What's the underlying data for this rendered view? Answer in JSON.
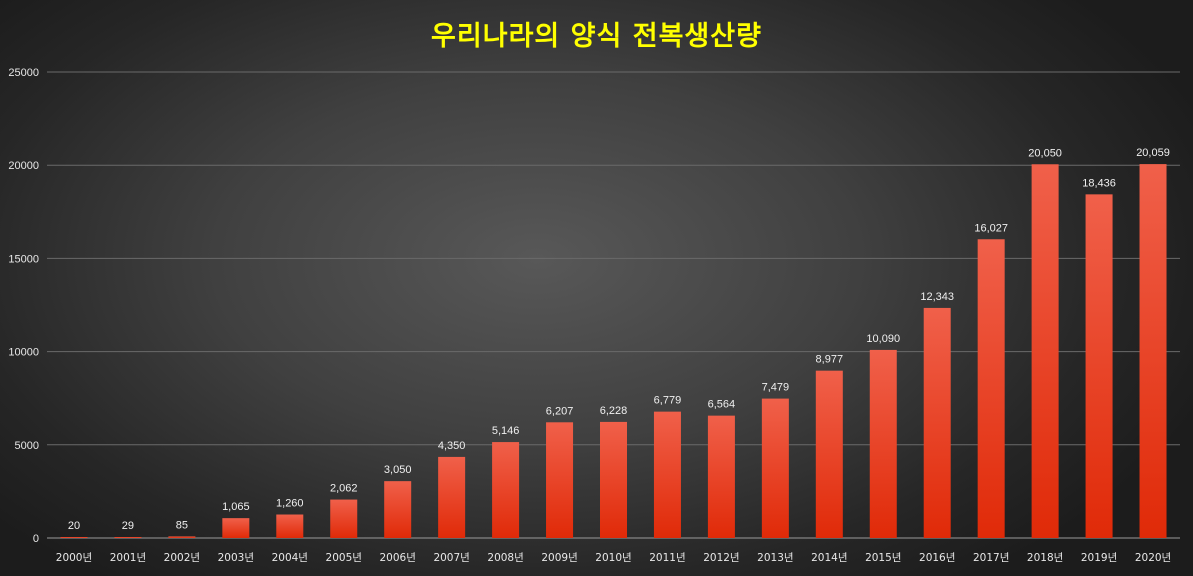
{
  "chart_data": {
    "type": "bar",
    "title": "우리나라의 양식 전복생산량",
    "categories": [
      "2000년",
      "2001년",
      "2002년",
      "2003년",
      "2004년",
      "2005년",
      "2006년",
      "2007년",
      "2008년",
      "2009년",
      "2010년",
      "2011년",
      "2012년",
      "2013년",
      "2014년",
      "2015년",
      "2016년",
      "2017년",
      "2018년",
      "2019년",
      "2020년"
    ],
    "values": [
      20,
      29,
      85,
      1065,
      1260,
      2062,
      3050,
      4350,
      5146,
      6207,
      6228,
      6779,
      6564,
      7479,
      8977,
      10090,
      12343,
      16027,
      20050,
      18436,
      20059
    ],
    "data_labels": [
      "20",
      "29",
      "85",
      "1,065",
      "1,260",
      "2,062",
      "3,050",
      "4,350",
      "5,146",
      "6,207",
      "6,228",
      "6,779",
      "6,564",
      "7,479",
      "8,977",
      "10,090",
      "12,343",
      "16,027",
      "20,050",
      "18,436",
      "20,059"
    ],
    "ylim": [
      0,
      25000
    ],
    "yticks": [
      0,
      5000,
      10000,
      15000,
      20000,
      25000
    ],
    "ytick_labels": [
      "0",
      "5000",
      "10000",
      "15000",
      "20000",
      "25000"
    ],
    "grid": true,
    "xlabel": "",
    "ylabel": "",
    "colors": {
      "title": "#ffff00",
      "bar_top": "#f0604a",
      "bar_bottom": "#e02a08",
      "grid": "#6a6a6a",
      "axis": "#9a9a9a"
    }
  }
}
